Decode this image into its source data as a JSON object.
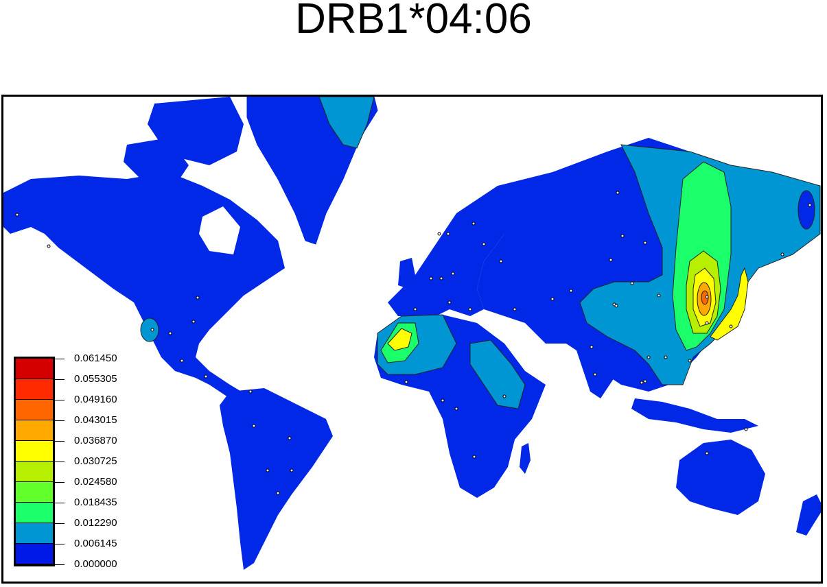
{
  "title": "DRB1*04:06",
  "legend": {
    "levels": [
      "0.061450",
      "0.055305",
      "0.049160",
      "0.043015",
      "0.036870",
      "0.030725",
      "0.024580",
      "0.018435",
      "0.012290",
      "0.006145",
      "0.000000"
    ],
    "colors": [
      "#d40000",
      "#ff2a00",
      "#ff6600",
      "#ffa800",
      "#ffff00",
      "#b6f000",
      "#62ff2a",
      "#1aff6a",
      "#0096d4",
      "#0018e6"
    ]
  },
  "map": {
    "land_base_color": "#0028e6",
    "ocean_color": "#ffffff"
  }
}
